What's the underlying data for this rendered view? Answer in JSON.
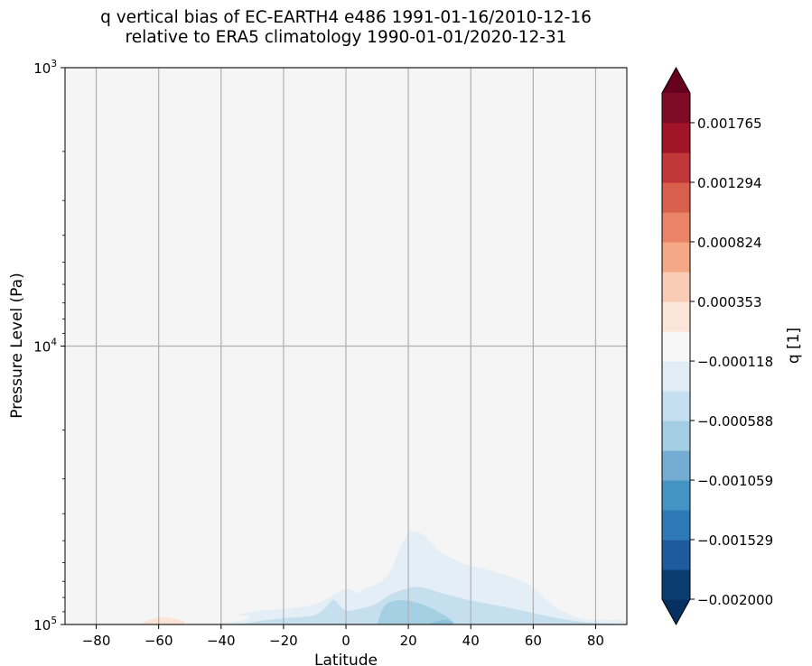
{
  "chart_data": {
    "type": "heatmap",
    "title": "q vertical bias of EC-EARTH4 e486 1991-01-16/2010-12-16\nrelative to ERA5 climatology 1990-01-01/2020-12-31",
    "xlabel": "Latitude",
    "ylabel": "Pressure Level (Pa)",
    "xlim": [
      -90,
      90
    ],
    "ylim": [
      100000,
      1000
    ],
    "yscale": "log",
    "xticks": [
      -80,
      -60,
      -40,
      -20,
      0,
      20,
      40,
      60,
      80
    ],
    "xtick_labels": [
      "−80",
      "−60",
      "−40",
      "−20",
      "0",
      "20",
      "40",
      "60",
      "80"
    ],
    "yticks": [
      {
        "value": 1000,
        "mantissa": "10",
        "exp": "3"
      },
      {
        "value": 10000,
        "mantissa": "10",
        "exp": "4"
      },
      {
        "value": 100000,
        "mantissa": "10",
        "exp": "5"
      }
    ],
    "grid": true,
    "background_color": "#f5f5f5",
    "regions": [
      {
        "name": "positive bias south",
        "level": 0.00012,
        "lat": [
          -66,
          -62,
          -58,
          -54,
          -51,
          -52,
          -56,
          -62,
          -67,
          -68
        ],
        "p": [
          100000,
          95000,
          94000,
          95500,
          98000,
          100000,
          100000,
          100000,
          100000,
          100000
        ],
        "color": "#fbe3d6"
      },
      {
        "name": "positive bias equator",
        "level": 0.00012,
        "lat": [
          -8,
          -6.5,
          -5.5,
          -6.5,
          -8
        ],
        "p": [
          97000,
          96000,
          98000,
          99500,
          97000
        ],
        "color": "#fbe3d6"
      },
      {
        "name": "negative bias level 1",
        "level": -0.00012,
        "lat": [
          -43,
          -36,
          -32,
          -30,
          -34,
          -35,
          -30,
          -24,
          -18,
          -14,
          -10,
          -5,
          -2,
          0,
          2,
          4,
          6,
          10,
          14,
          18,
          20,
          22,
          25,
          28,
          30,
          34,
          38,
          42,
          46,
          50,
          54,
          58,
          62,
          66,
          70,
          74,
          78,
          82,
          86,
          90,
          90,
          -43
        ],
        "p": [
          100000,
          97500,
          96500,
          93000,
          93000,
          92000,
          90000,
          88500,
          87500,
          86500,
          85000,
          80000,
          76000,
          74000,
          75000,
          78000,
          74000,
          72000,
          66000,
          51000,
          46500,
          46000,
          47500,
          52000,
          55000,
          58000,
          61000,
          62000,
          64000,
          66000,
          68000,
          71000,
          77000,
          85000,
          90000,
          95000,
          96500,
          96000,
          96500,
          96500,
          100000,
          100000
        ],
        "color": "#e3eef6"
      },
      {
        "name": "negative bias level 2",
        "level": -0.00035,
        "lat": [
          -34,
          -30,
          -26,
          -22,
          -18,
          -14,
          -10,
          -8,
          -6,
          -4,
          -2,
          0,
          4,
          8,
          10,
          14,
          18,
          22,
          26,
          30,
          36,
          42,
          50,
          56,
          62,
          68,
          74,
          80,
          86,
          90,
          90,
          -34
        ],
        "p": [
          100000,
          98000,
          96500,
          95500,
          94500,
          94000,
          93000,
          90000,
          86000,
          80000,
          86000,
          90000,
          88000,
          86000,
          84000,
          78000,
          75000,
          73000,
          74000,
          77000,
          80000,
          83000,
          86000,
          89000,
          92000,
          95000,
          97500,
          99000,
          99500,
          99500,
          100000,
          100000
        ],
        "color": "#c5dfee"
      },
      {
        "name": "negative bias level 3",
        "level": -0.00059,
        "lat": [
          10,
          12,
          16,
          20,
          24,
          28,
          32,
          34,
          35,
          10
        ],
        "p": [
          100000,
          85000,
          81500,
          82000,
          84000,
          88000,
          93000,
          97000,
          100000,
          100000
        ],
        "color": "#a5cfe3"
      },
      {
        "name": "negative bias level 4",
        "level": -0.00082,
        "lat": [
          26,
          29,
          32,
          34,
          35,
          26
        ],
        "p": [
          100000,
          97000,
          96000,
          97500,
          100000,
          100000
        ],
        "color": "#8ec2dd"
      }
    ],
    "colorbar": {
      "label": "q [1]",
      "vmin": -0.002,
      "vmax": 0.002,
      "extend": "both",
      "below_color": "#053061",
      "above_color": "#67001f",
      "colors": [
        "#0b3c6f",
        "#1f5a9e",
        "#2e79b7",
        "#4393c3",
        "#74add1",
        "#a2cde3",
        "#c5dff0",
        "#e1edf6",
        "#f7f7f7",
        "#fbe5d9",
        "#f9cdb5",
        "#f5a886",
        "#ea8468",
        "#d75f4c",
        "#c13739",
        "#a21528",
        "#800b25"
      ],
      "ticks": [
        -0.002,
        -0.001529,
        -0.001059,
        -0.000588,
        -0.000118,
        0.000353,
        0.000824,
        0.001294,
        0.001765
      ],
      "tick_labels": [
        "−0.002000",
        "−0.001529",
        "−0.001059",
        "−0.000588",
        "−0.000118",
        "0.000353",
        "0.000824",
        "0.001294",
        "0.001765"
      ]
    }
  }
}
